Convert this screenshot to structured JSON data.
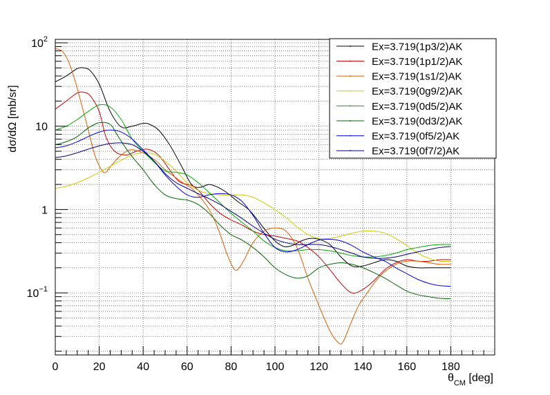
{
  "chart_data": {
    "type": "line",
    "xlabel_main": "θ",
    "xlabel_sub": "CM",
    "xlabel_unit": " [deg]",
    "ylabel": "dσ/dΩ [mb/sr]",
    "xlim": [
      0,
      200
    ],
    "ylim": [
      0.018,
      110
    ],
    "yscale": "log",
    "grid": true,
    "legend_position": "top-right",
    "x_ticks": [
      0,
      20,
      40,
      60,
      80,
      100,
      120,
      140,
      160,
      180
    ],
    "x_tick_labels": [
      "0",
      "20",
      "40",
      "60",
      "80",
      "100",
      "120",
      "140",
      "160",
      "180"
    ],
    "y_ticks": [
      {
        "value": 0.1,
        "base": "10",
        "exp": "−1"
      },
      {
        "value": 1,
        "base": "1",
        "exp": ""
      },
      {
        "value": 10,
        "base": "10",
        "exp": ""
      },
      {
        "value": 100,
        "base": "10",
        "exp": "2"
      }
    ],
    "series": [
      {
        "name": "Ex=3.719(1p3/2)AK",
        "color": "#000000",
        "x": [
          0,
          5,
          10,
          13,
          16,
          20,
          25,
          30,
          35,
          40,
          43,
          47,
          52,
          57,
          62,
          66,
          70,
          74,
          78,
          83,
          88,
          92,
          96,
          100,
          104,
          108,
          112,
          116,
          120,
          125,
          130,
          135,
          140,
          145,
          150,
          155,
          160,
          165,
          170,
          175,
          180
        ],
        "y": [
          34,
          40,
          49,
          50,
          46,
          32,
          15,
          9.8,
          10,
          10.8,
          10.5,
          9,
          6,
          3.5,
          2,
          1.85,
          2,
          1.85,
          1.6,
          1.25,
          1.0,
          0.75,
          0.55,
          0.42,
          0.36,
          0.37,
          0.42,
          0.45,
          0.44,
          0.38,
          0.27,
          0.21,
          0.21,
          0.23,
          0.25,
          0.24,
          0.21,
          0.2,
          0.2,
          0.2,
          0.2
        ]
      },
      {
        "name": "Ex=3.719(1p1/2)AK",
        "color": "#cc0000",
        "x": [
          0,
          5,
          10,
          13,
          16,
          20,
          23,
          27,
          32,
          37,
          42,
          47,
          52,
          56,
          60,
          63,
          66,
          70,
          75,
          80,
          85,
          90,
          95,
          100,
          105,
          110,
          115,
          120,
          125,
          130,
          135,
          140,
          145,
          150,
          155,
          160,
          165,
          170,
          175,
          180
        ],
        "y": [
          16,
          20,
          25,
          25.5,
          23,
          15,
          7.5,
          5,
          4.5,
          5,
          5.3,
          4.5,
          3,
          2.2,
          2,
          1.9,
          1.6,
          1.2,
          0.9,
          0.75,
          0.65,
          0.55,
          0.5,
          0.48,
          0.45,
          0.42,
          0.35,
          0.27,
          0.19,
          0.13,
          0.1,
          0.11,
          0.14,
          0.19,
          0.23,
          0.25,
          0.24,
          0.24,
          0.25,
          0.25
        ]
      },
      {
        "name": "Ex=3.719(1s1/2)AK",
        "color": "#e05a00",
        "x": [
          0,
          3,
          6,
          9,
          12,
          15,
          18,
          21,
          23,
          26,
          30,
          34,
          38,
          42,
          46,
          50,
          54,
          58,
          62,
          66,
          70,
          74,
          78,
          81,
          83,
          86,
          90,
          95,
          100,
          105,
          110,
          115,
          120,
          125,
          129,
          131,
          134,
          138,
          142,
          146,
          150,
          155,
          160,
          165,
          170,
          175,
          180
        ],
        "y": [
          85,
          80,
          60,
          35,
          18,
          9,
          4.5,
          3,
          2.8,
          3.5,
          4.5,
          5.2,
          5,
          4.5,
          3.8,
          3,
          2.5,
          2.1,
          1.8,
          1.4,
          1.0,
          0.6,
          0.3,
          0.2,
          0.19,
          0.25,
          0.4,
          0.55,
          0.6,
          0.55,
          0.35,
          0.15,
          0.07,
          0.035,
          0.025,
          0.026,
          0.04,
          0.07,
          0.1,
          0.14,
          0.18,
          0.22,
          0.24,
          0.24,
          0.23,
          0.22,
          0.22
        ]
      },
      {
        "name": "Ex=3.719(0g9/2)AK",
        "color": "#cccc00",
        "x": [
          0,
          5,
          10,
          15,
          20,
          25,
          30,
          35,
          40,
          45,
          50,
          55,
          60,
          65,
          70,
          75,
          80,
          85,
          90,
          95,
          100,
          105,
          110,
          115,
          120,
          125,
          130,
          135,
          140,
          145,
          150,
          155,
          160,
          165,
          170,
          175,
          180
        ],
        "y": [
          1.8,
          1.9,
          2.1,
          2.4,
          2.8,
          3.3,
          3.9,
          4.5,
          4.8,
          4.6,
          3.8,
          2.9,
          2.1,
          1.7,
          1.55,
          1.5,
          1.48,
          1.5,
          1.4,
          1.2,
          1.0,
          0.8,
          0.62,
          0.5,
          0.45,
          0.45,
          0.48,
          0.52,
          0.55,
          0.55,
          0.52,
          0.45,
          0.37,
          0.3,
          0.26,
          0.24,
          0.24
        ]
      },
      {
        "name": "Ex=3.719(0d5/2)AK",
        "color": "#00aa00",
        "x": [
          0,
          5,
          10,
          15,
          20,
          25,
          30,
          35,
          40,
          45,
          50,
          55,
          60,
          65,
          70,
          75,
          80,
          85,
          90,
          95,
          100,
          105,
          110,
          115,
          120,
          125,
          130,
          135,
          140,
          145,
          150,
          155,
          160,
          165,
          170,
          175,
          180
        ],
        "y": [
          9,
          10,
          12,
          15,
          18,
          17,
          12,
          7,
          5,
          3.7,
          2.9,
          2.8,
          2.6,
          2.1,
          1.6,
          1.2,
          0.9,
          0.7,
          0.55,
          0.42,
          0.35,
          0.32,
          0.32,
          0.33,
          0.33,
          0.32,
          0.3,
          0.28,
          0.27,
          0.27,
          0.28,
          0.3,
          0.33,
          0.35,
          0.37,
          0.38,
          0.38
        ]
      },
      {
        "name": "Ex=3.719(0d3/2)AK",
        "color": "#006600",
        "x": [
          0,
          5,
          10,
          15,
          20,
          25,
          28,
          32,
          36,
          40,
          45,
          50,
          55,
          60,
          65,
          70,
          75,
          80,
          85,
          90,
          95,
          100,
          105,
          110,
          115,
          120,
          125,
          130,
          135,
          140,
          145,
          150,
          155,
          160,
          165,
          170,
          175,
          180
        ],
        "y": [
          6,
          6.5,
          7.5,
          9.5,
          11,
          10.5,
          8,
          5.5,
          4,
          3,
          2,
          1.5,
          1.35,
          1.3,
          1.15,
          0.9,
          0.65,
          0.5,
          0.43,
          0.35,
          0.27,
          0.2,
          0.165,
          0.15,
          0.16,
          0.2,
          0.22,
          0.23,
          0.22,
          0.2,
          0.175,
          0.15,
          0.125,
          0.105,
          0.095,
          0.09,
          0.086,
          0.085
        ]
      },
      {
        "name": "Ex=3.719(0f5/2)AK",
        "color": "#0000ee",
        "x": [
          0,
          5,
          10,
          15,
          20,
          25,
          30,
          35,
          40,
          45,
          50,
          55,
          60,
          65,
          70,
          75,
          80,
          85,
          90,
          95,
          100,
          105,
          110,
          115,
          120,
          125,
          130,
          135,
          140,
          145,
          150,
          155,
          160,
          165,
          170,
          175,
          180
        ],
        "y": [
          5.5,
          5.8,
          6.5,
          7.5,
          8.5,
          9,
          8.5,
          7,
          5.2,
          3.8,
          2.6,
          1.9,
          1.5,
          1.4,
          1.5,
          1.55,
          1.5,
          1.25,
          0.85,
          0.52,
          0.35,
          0.31,
          0.33,
          0.38,
          0.43,
          0.44,
          0.42,
          0.37,
          0.31,
          0.27,
          0.24,
          0.2,
          0.17,
          0.145,
          0.13,
          0.122,
          0.12
        ]
      },
      {
        "name": "Ex=3.719(0f7/2)AK",
        "color": "#00008b",
        "x": [
          0,
          5,
          10,
          15,
          20,
          25,
          30,
          35,
          40,
          45,
          50,
          55,
          60,
          65,
          70,
          75,
          80,
          85,
          90,
          95,
          100,
          105,
          110,
          115,
          120,
          125,
          130,
          135,
          140,
          145,
          150,
          155,
          160,
          165,
          170,
          175,
          180
        ],
        "y": [
          4.2,
          4.4,
          4.8,
          5.3,
          5.8,
          6.2,
          6.3,
          6,
          5,
          3.8,
          2.7,
          2.1,
          1.8,
          1.55,
          1.35,
          1.15,
          0.95,
          0.78,
          0.63,
          0.52,
          0.44,
          0.4,
          0.38,
          0.38,
          0.38,
          0.36,
          0.33,
          0.3,
          0.27,
          0.26,
          0.26,
          0.27,
          0.29,
          0.31,
          0.33,
          0.35,
          0.36
        ]
      }
    ]
  }
}
